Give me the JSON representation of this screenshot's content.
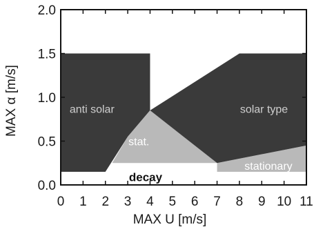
{
  "chart_data": {
    "type": "area",
    "xlabel": "MAX U [m/s]",
    "ylabel": "MAX α [m/s]",
    "xlim": [
      0,
      11
    ],
    "ylim": [
      0,
      2.0
    ],
    "xticks": [
      "0",
      "1",
      "2",
      "3",
      "4",
      "5",
      "6",
      "7",
      "8",
      "9",
      "10",
      "11"
    ],
    "yticks": [
      "0.0",
      "0.5",
      "1.0",
      "1.5",
      "2.0"
    ],
    "grid": false,
    "colors": {
      "dark_region": "#3a3a3a",
      "light_region": "#b9b9b9",
      "background": "#ffffff"
    },
    "regions": [
      {
        "label": "decay",
        "shade": "white",
        "polygon": [
          [
            0,
            0
          ],
          [
            11,
            0
          ],
          [
            11,
            0.15
          ],
          [
            7,
            0.15
          ],
          [
            4,
            0.15
          ],
          [
            2,
            0.15
          ],
          [
            2,
            0.15
          ]
        ]
      },
      {
        "label": "anti solar",
        "shade": "dark",
        "polygon": [
          [
            0,
            0.15
          ],
          [
            2,
            0.15
          ],
          [
            3,
            0.55
          ],
          [
            4,
            0.85
          ],
          [
            4,
            1.5
          ],
          [
            0,
            1.5
          ]
        ]
      },
      {
        "label": "stat.",
        "shade": "light",
        "polygon": [
          [
            3,
            0.55
          ],
          [
            4,
            0.85
          ],
          [
            7,
            0.25
          ],
          [
            2.3,
            0.25
          ]
        ]
      },
      {
        "label": "stationary",
        "shade": "light",
        "polygon": [
          [
            7,
            0.15
          ],
          [
            11,
            0.15
          ],
          [
            11,
            0.45
          ],
          [
            7,
            0.25
          ]
        ]
      },
      {
        "label": "solar type",
        "shade": "dark",
        "polygon": [
          [
            4,
            0.85
          ],
          [
            8,
            1.5
          ],
          [
            11,
            1.5
          ],
          [
            11,
            0.45
          ],
          [
            7,
            0.25
          ]
        ]
      }
    ],
    "annotations": [
      {
        "text": "anti solar",
        "x": 1.4,
        "y": 0.87
      },
      {
        "text": "stat.",
        "x": 3.5,
        "y": 0.5
      },
      {
        "text": "solar type",
        "x": 9.1,
        "y": 0.87
      },
      {
        "text": "stationary",
        "x": 9.3,
        "y": 0.22
      },
      {
        "text": "decay",
        "x": 3.8,
        "y": 0.09
      }
    ]
  }
}
